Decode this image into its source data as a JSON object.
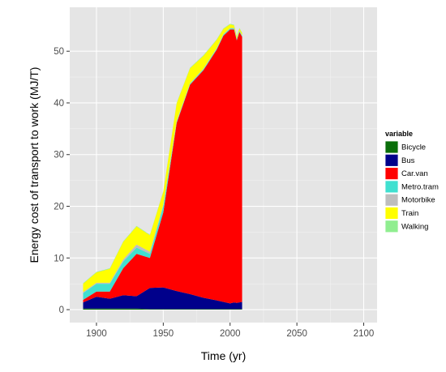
{
  "chart_data": {
    "type": "area",
    "stacked": true,
    "xlabel": "Time (yr)",
    "ylabel": "Energy cost of transport to work (MJ/T)",
    "xlim": [
      1880,
      2110
    ],
    "ylim": [
      -2.5,
      58.5
    ],
    "xticks": [
      "1900",
      "1950",
      "2000",
      "2050",
      "2100"
    ],
    "yticks": [
      "0",
      "10",
      "20",
      "30",
      "40",
      "50"
    ],
    "legend_title": "variable",
    "legend_position": "right",
    "grid": true,
    "x": [
      1890,
      1900,
      1910,
      1920,
      1930,
      1940,
      1950,
      1960,
      1970,
      1980,
      1990,
      1995,
      2000,
      2003,
      2005,
      2007,
      2009
    ],
    "series": [
      {
        "name": "Bicycle",
        "color": "#0a6e0a",
        "values": [
          0.2,
          0.2,
          0.2,
          0.2,
          0.2,
          0.1,
          0.1,
          0.1,
          0.1,
          0.1,
          0.1,
          0.1,
          0.1,
          0.1,
          0.1,
          0.1,
          0.1
        ]
      },
      {
        "name": "Bus",
        "color": "#00008b",
        "values": [
          1.2,
          2.3,
          1.9,
          2.6,
          2.4,
          4.1,
          4.2,
          3.5,
          2.9,
          2.2,
          1.7,
          1.4,
          1.1,
          1.3,
          1.2,
          1.3,
          1.4
        ]
      },
      {
        "name": "Car.van",
        "color": "#ff0000",
        "values": [
          0.5,
          1.0,
          1.4,
          5.2,
          8.2,
          5.8,
          14.5,
          32.5,
          40.5,
          44.0,
          48.5,
          51.5,
          53.0,
          52.8,
          50.8,
          52.3,
          51.3
        ]
      },
      {
        "name": "Metro.tram",
        "color": "#40e0d0",
        "values": [
          1.3,
          1.5,
          1.5,
          1.3,
          1.2,
          0.8,
          1.2,
          0.2,
          0.2,
          0.2,
          0.2,
          0.2,
          0.2,
          0.2,
          0.2,
          0.2,
          0.2
        ]
      },
      {
        "name": "Motorbike",
        "color": "#bebebe",
        "values": [
          0.2,
          0.2,
          0.2,
          0.4,
          0.6,
          0.4,
          0.3,
          0.2,
          0.1,
          0.1,
          0.1,
          0.1,
          0.1,
          0.1,
          0.1,
          0.1,
          0.1
        ]
      },
      {
        "name": "Train",
        "color": "#ffff00",
        "values": [
          1.6,
          2.0,
          2.7,
          3.4,
          3.5,
          3.2,
          2.5,
          3.4,
          2.9,
          2.5,
          1.6,
          1.0,
          0.7,
          0.5,
          0.4,
          0.4,
          0.4
        ]
      },
      {
        "name": "Walking",
        "color": "#90ee90",
        "values": [
          0.1,
          0.1,
          0.1,
          0.1,
          0.1,
          0.1,
          0.1,
          0.1,
          0.1,
          0.1,
          0.1,
          0.1,
          0.1,
          0.1,
          0.1,
          0.1,
          0.1
        ]
      }
    ]
  },
  "colors": {
    "panel_background": "#e5e5e5",
    "grid_major": "#ffffff",
    "grid_minor": "#f2f2f2"
  }
}
